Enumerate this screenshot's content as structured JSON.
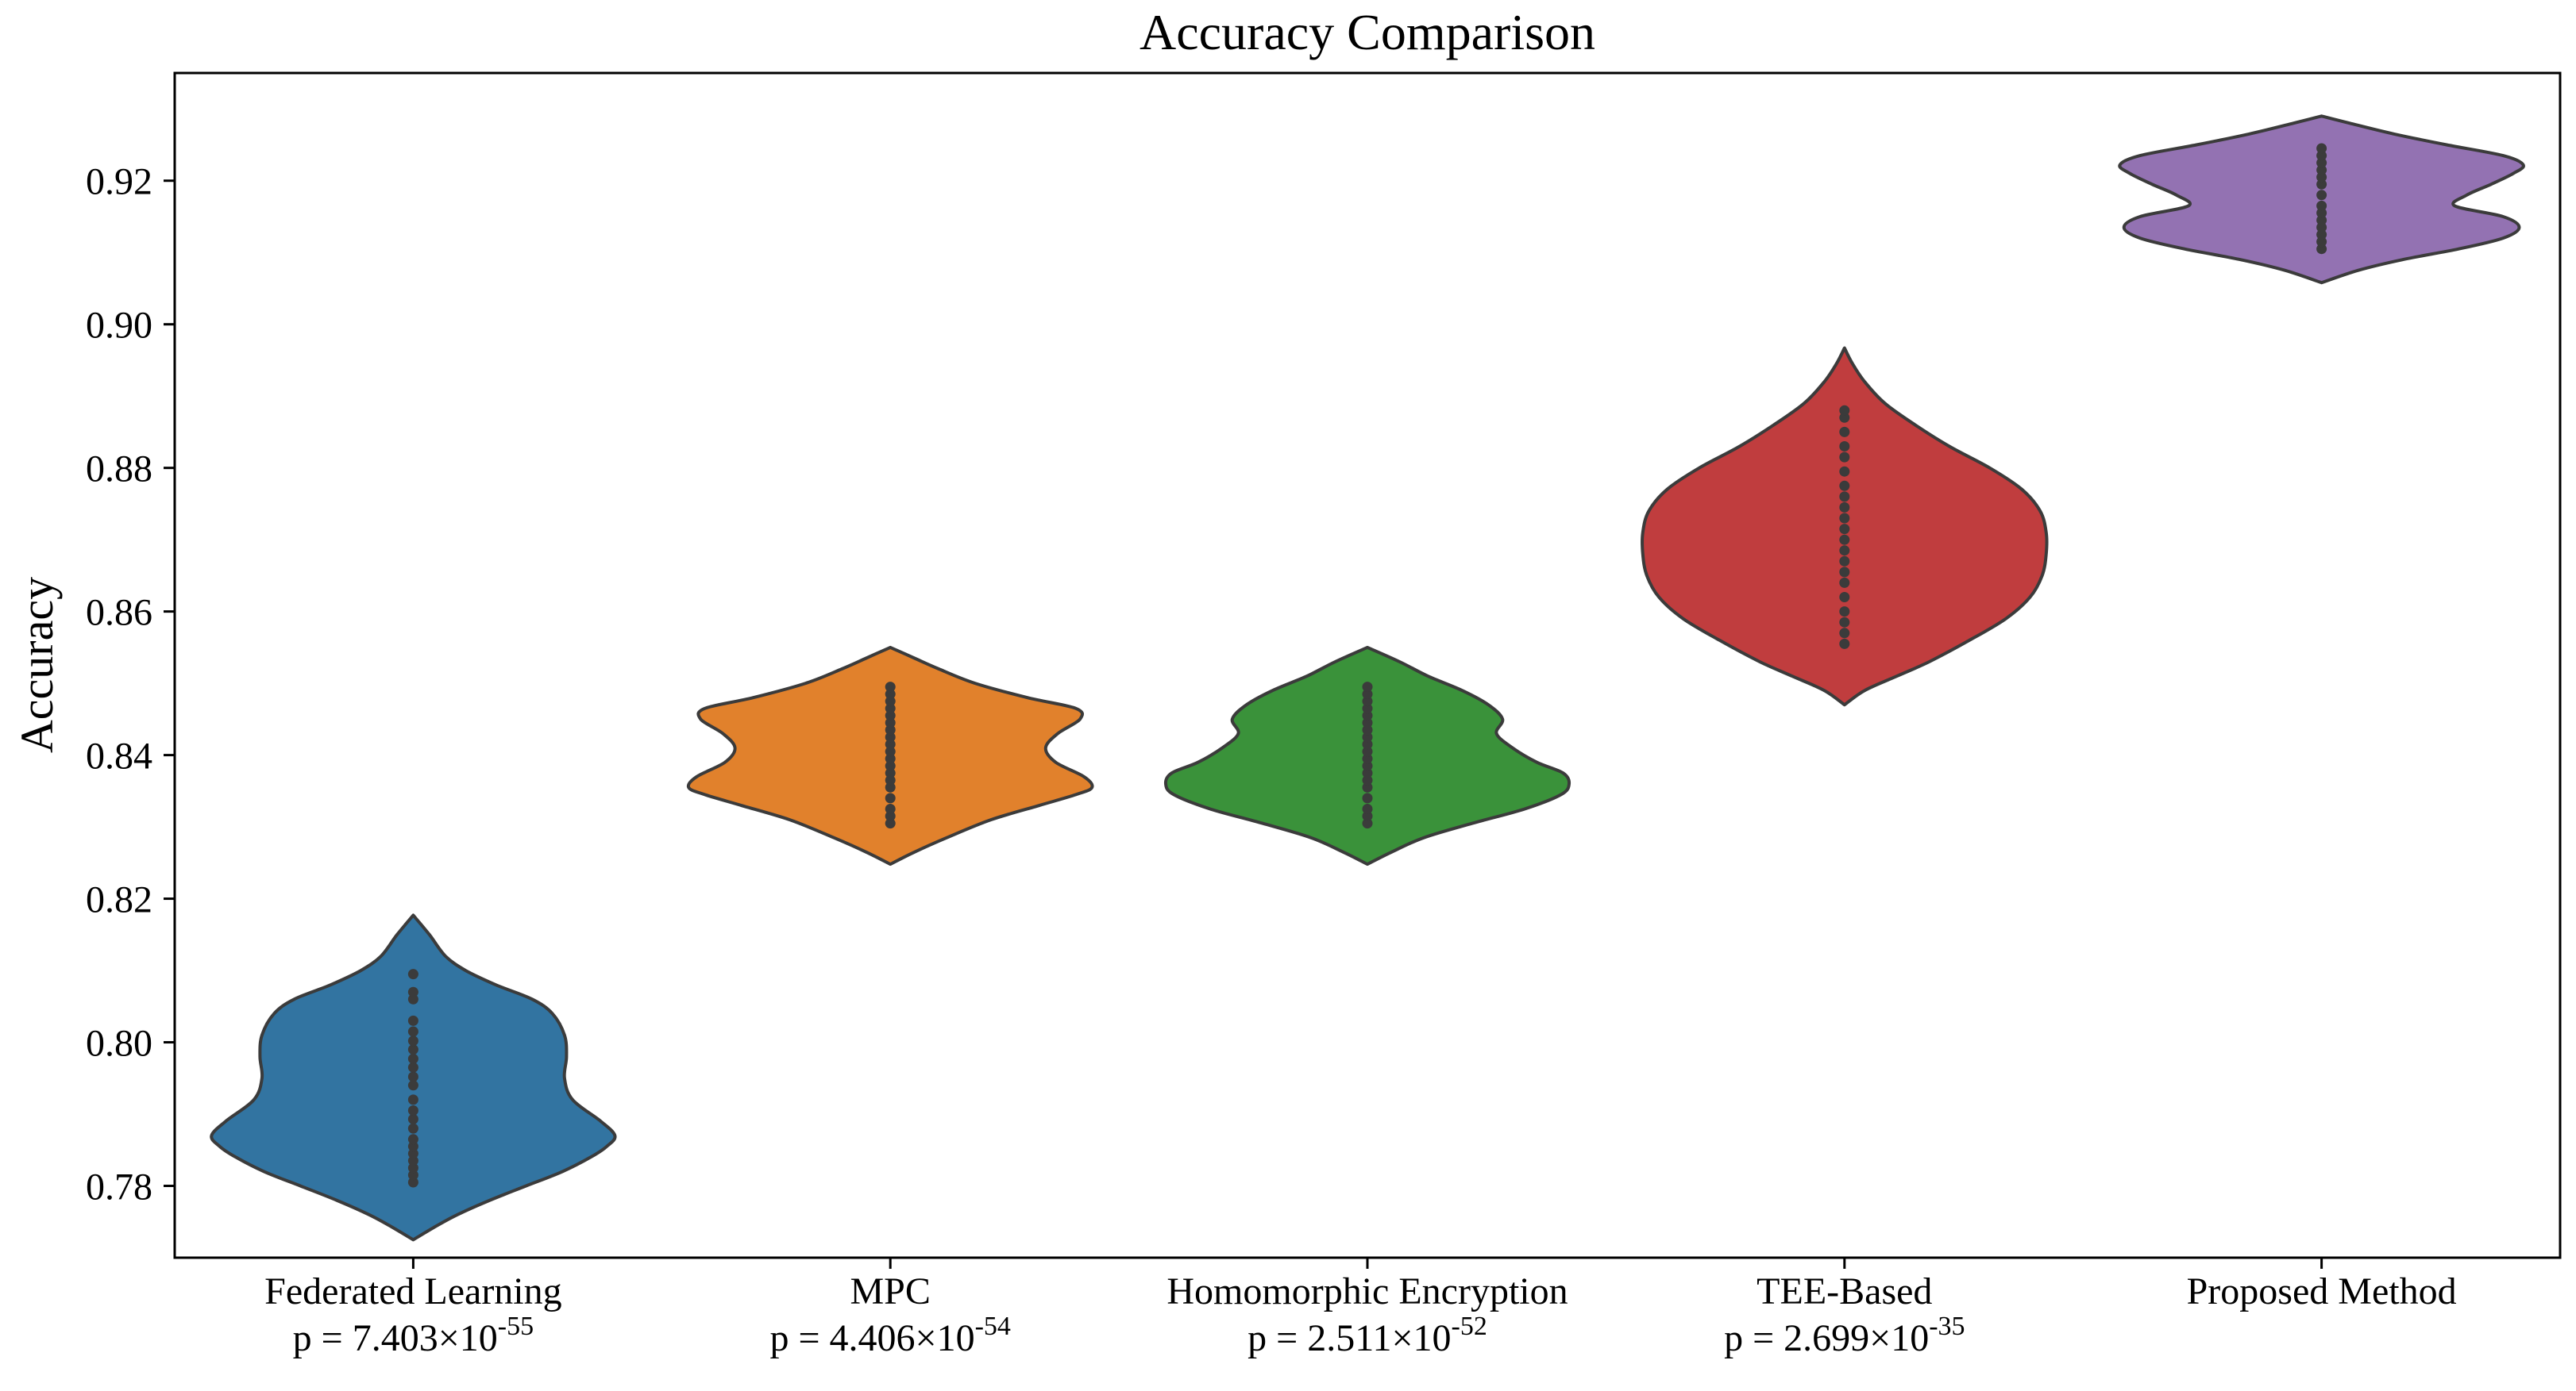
{
  "chart_data": {
    "type": "violin",
    "title": "Accuracy Comparison",
    "xlabel": "",
    "ylabel": "Accuracy",
    "ylim": [
      0.77,
      0.935
    ],
    "yticks": [
      "0.78",
      "0.80",
      "0.82",
      "0.84",
      "0.86",
      "0.88",
      "0.90",
      "0.92"
    ],
    "grid": false,
    "categories": [
      {
        "name": "Federated Learning",
        "p_prefix": "p = 7.403×10",
        "p_exp": "-55",
        "color": "#3274a1",
        "min": 0.7725,
        "max": 0.8177,
        "density": [
          [
            0.7725,
            0.0
          ],
          [
            0.7745,
            0.12
          ],
          [
            0.776,
            0.22
          ],
          [
            0.778,
            0.38
          ],
          [
            0.78,
            0.56
          ],
          [
            0.782,
            0.74
          ],
          [
            0.784,
            0.88
          ],
          [
            0.7855,
            0.96
          ],
          [
            0.787,
            1.0
          ],
          [
            0.789,
            0.93
          ],
          [
            0.792,
            0.79
          ],
          [
            0.795,
            0.75
          ],
          [
            0.798,
            0.76
          ],
          [
            0.801,
            0.75
          ],
          [
            0.804,
            0.69
          ],
          [
            0.806,
            0.59
          ],
          [
            0.808,
            0.41
          ],
          [
            0.81,
            0.26
          ],
          [
            0.812,
            0.16
          ],
          [
            0.815,
            0.08
          ],
          [
            0.8177,
            0.0
          ]
        ],
        "points": [
          0.7805,
          0.7815,
          0.7825,
          0.7835,
          0.7845,
          0.7855,
          0.7865,
          0.788,
          0.7893,
          0.7905,
          0.792,
          0.794,
          0.7952,
          0.7965,
          0.7977,
          0.799,
          0.8002,
          0.8015,
          0.803,
          0.806,
          0.807,
          0.8095
        ]
      },
      {
        "name": "MPC",
        "p_prefix": "p = 4.406×10",
        "p_exp": "-54",
        "color": "#e1812c",
        "min": 0.8248,
        "max": 0.855,
        "density": [
          [
            0.8248,
            0.0
          ],
          [
            0.8265,
            0.12
          ],
          [
            0.8285,
            0.28
          ],
          [
            0.831,
            0.5
          ],
          [
            0.833,
            0.74
          ],
          [
            0.8345,
            0.92
          ],
          [
            0.8355,
            1.0
          ],
          [
            0.837,
            0.96
          ],
          [
            0.839,
            0.82
          ],
          [
            0.841,
            0.77
          ],
          [
            0.843,
            0.83
          ],
          [
            0.845,
            0.94
          ],
          [
            0.8465,
            0.92
          ],
          [
            0.848,
            0.68
          ],
          [
            0.85,
            0.42
          ],
          [
            0.852,
            0.24
          ],
          [
            0.8535,
            0.12
          ],
          [
            0.855,
            0.0
          ]
        ],
        "points": [
          0.8305,
          0.8315,
          0.8325,
          0.834,
          0.8355,
          0.8365,
          0.8375,
          0.8385,
          0.8395,
          0.8405,
          0.8415,
          0.8425,
          0.8435,
          0.8445,
          0.8455,
          0.8465,
          0.8475,
          0.8485,
          0.8495
        ]
      },
      {
        "name": "Homomorphic Encryption",
        "p_prefix": "p = 2.511×10",
        "p_exp": "-52",
        "color": "#3a923a",
        "min": 0.8248,
        "max": 0.855,
        "density": [
          [
            0.8248,
            0.0
          ],
          [
            0.8265,
            0.12
          ],
          [
            0.8285,
            0.28
          ],
          [
            0.8305,
            0.52
          ],
          [
            0.8325,
            0.78
          ],
          [
            0.8345,
            0.96
          ],
          [
            0.836,
            1.0
          ],
          [
            0.8375,
            0.97
          ],
          [
            0.839,
            0.84
          ],
          [
            0.841,
            0.72
          ],
          [
            0.843,
            0.64
          ],
          [
            0.845,
            0.67
          ],
          [
            0.847,
            0.6
          ],
          [
            0.849,
            0.47
          ],
          [
            0.851,
            0.3
          ],
          [
            0.853,
            0.16
          ],
          [
            0.855,
            0.0
          ]
        ],
        "points": [
          0.8305,
          0.8315,
          0.8325,
          0.834,
          0.8355,
          0.8365,
          0.8375,
          0.8385,
          0.8395,
          0.8405,
          0.8415,
          0.8425,
          0.8435,
          0.8445,
          0.8455,
          0.8465,
          0.8475,
          0.8485,
          0.8495
        ]
      },
      {
        "name": "TEE-Based",
        "p_prefix": "p = 2.699×10",
        "p_exp": "-35",
        "color": "#c03d3e",
        "min": 0.847,
        "max": 0.8967,
        "density": [
          [
            0.847,
            0.0
          ],
          [
            0.849,
            0.1
          ],
          [
            0.851,
            0.26
          ],
          [
            0.853,
            0.42
          ],
          [
            0.856,
            0.62
          ],
          [
            0.859,
            0.8
          ],
          [
            0.862,
            0.92
          ],
          [
            0.865,
            0.98
          ],
          [
            0.868,
            1.0
          ],
          [
            0.871,
            1.0
          ],
          [
            0.874,
            0.97
          ],
          [
            0.877,
            0.88
          ],
          [
            0.88,
            0.72
          ],
          [
            0.883,
            0.52
          ],
          [
            0.886,
            0.35
          ],
          [
            0.889,
            0.2
          ],
          [
            0.892,
            0.1
          ],
          [
            0.8945,
            0.04
          ],
          [
            0.8967,
            0.0
          ]
        ],
        "points": [
          0.8555,
          0.857,
          0.8585,
          0.86,
          0.862,
          0.864,
          0.8655,
          0.867,
          0.8685,
          0.87,
          0.8715,
          0.873,
          0.8745,
          0.876,
          0.8775,
          0.8795,
          0.8815,
          0.883,
          0.885,
          0.887,
          0.888
        ]
      },
      {
        "name": "Proposed Method",
        "p_prefix": "",
        "p_exp": "",
        "color": "#9372b2",
        "min": 0.9058,
        "max": 0.929,
        "density": [
          [
            0.9058,
            0.0
          ],
          [
            0.9075,
            0.18
          ],
          [
            0.909,
            0.4
          ],
          [
            0.9105,
            0.68
          ],
          [
            0.912,
            0.9
          ],
          [
            0.9135,
            0.98
          ],
          [
            0.915,
            0.9
          ],
          [
            0.9165,
            0.66
          ],
          [
            0.918,
            0.72
          ],
          [
            0.9195,
            0.84
          ],
          [
            0.921,
            0.95
          ],
          [
            0.9222,
            1.0
          ],
          [
            0.9235,
            0.9
          ],
          [
            0.925,
            0.62
          ],
          [
            0.9265,
            0.36
          ],
          [
            0.928,
            0.14
          ],
          [
            0.929,
            0.0
          ]
        ],
        "points": [
          0.9105,
          0.9115,
          0.9125,
          0.9135,
          0.9145,
          0.9155,
          0.9165,
          0.918,
          0.9195,
          0.9205,
          0.9215,
          0.9225,
          0.9235,
          0.9245
        ]
      }
    ]
  }
}
